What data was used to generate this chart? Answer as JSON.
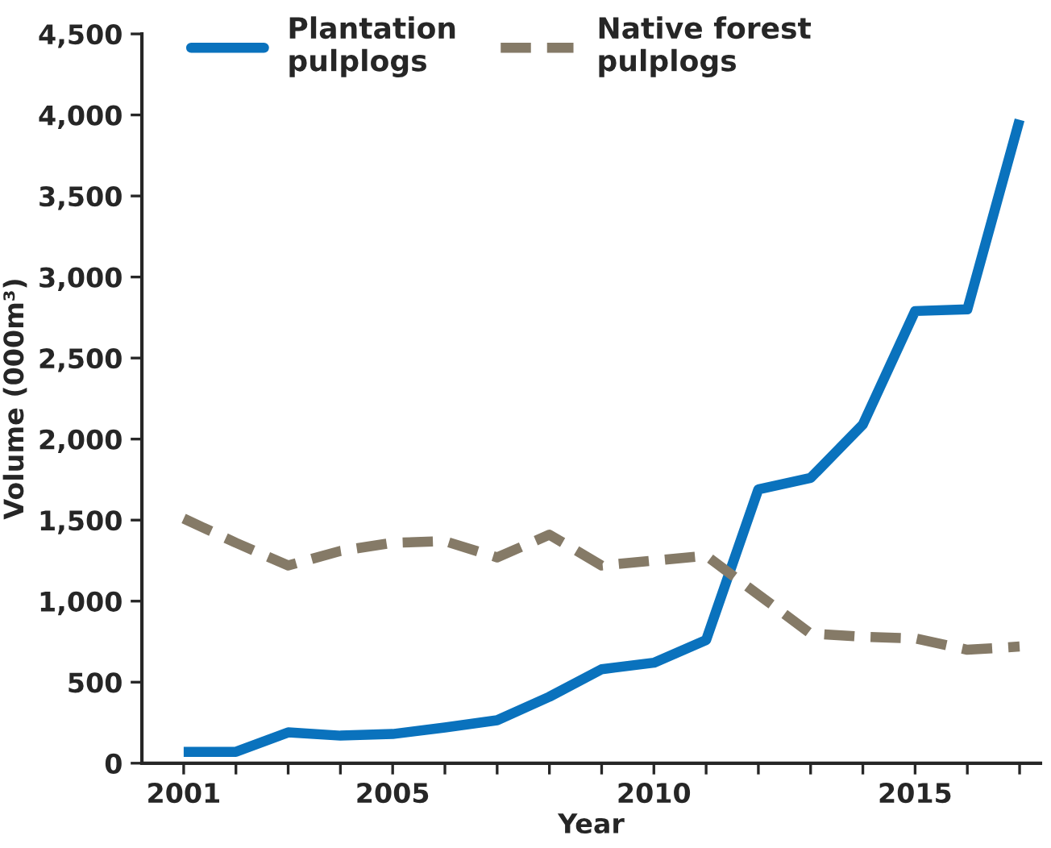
{
  "chart_data": {
    "type": "line",
    "xlabel": "Year",
    "ylabel": "Volume (000m³)",
    "x": [
      2001,
      2002,
      2003,
      2004,
      2005,
      2006,
      2007,
      2008,
      2009,
      2010,
      2011,
      2012,
      2013,
      2014,
      2015,
      2016,
      2017
    ],
    "series": [
      {
        "name": "Plantation pulplogs",
        "color": "#0a72bd",
        "line_style": "solid",
        "values": [
          70,
          70,
          190,
          170,
          180,
          220,
          265,
          410,
          580,
          620,
          760,
          1690,
          1760,
          2090,
          2790,
          2800,
          3970
        ]
      },
      {
        "name": "Native forest pulplogs",
        "color": "#857a67",
        "line_style": "dashed",
        "values": [
          1510,
          1360,
          1220,
          1310,
          1360,
          1370,
          1270,
          1410,
          1220,
          1250,
          1280,
          1040,
          800,
          780,
          770,
          700,
          720
        ]
      }
    ],
    "xlim": [
      2000.2,
      2017.4
    ],
    "xticks": [
      2001,
      {
        "value": 2002,
        "label": null
      },
      {
        "value": 2003,
        "label": null
      },
      {
        "value": 2004,
        "label": null
      },
      2005,
      {
        "value": 2006,
        "label": null
      },
      {
        "value": 2007,
        "label": null
      },
      {
        "value": 2008,
        "label": null
      },
      {
        "value": 2009,
        "label": null
      },
      2010,
      {
        "value": 2011,
        "label": null
      },
      {
        "value": 2012,
        "label": null
      },
      {
        "value": 2013,
        "label": null
      },
      {
        "value": 2014,
        "label": null
      },
      2015,
      {
        "value": 2016,
        "label": null
      },
      {
        "value": 2017,
        "label": null
      }
    ],
    "ylim": [
      0,
      4500
    ],
    "yticks": [
      {
        "value": 0,
        "label": "0"
      },
      {
        "value": 500,
        "label": "500"
      },
      {
        "value": 1000,
        "label": "1,000"
      },
      {
        "value": 1500,
        "label": "1,500"
      },
      {
        "value": 2000,
        "label": "2,000"
      },
      {
        "value": 2500,
        "label": "2,500"
      },
      {
        "value": 3000,
        "label": "3,000"
      },
      {
        "value": 3500,
        "label": "3,500"
      },
      {
        "value": 4000,
        "label": "4,000"
      },
      {
        "value": 4500,
        "label": "4,500"
      }
    ],
    "grid": false,
    "legend": "top",
    "marker": "none"
  }
}
